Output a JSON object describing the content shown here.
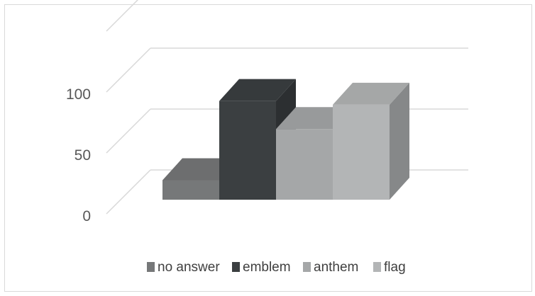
{
  "chart_data": {
    "type": "bar",
    "subtype": "3d-column",
    "categories": [
      "no answer",
      "emblem",
      "anthem",
      "flag"
    ],
    "values": [
      16,
      81,
      58,
      78
    ],
    "ylim": [
      0,
      150
    ],
    "yticks": [
      "0",
      "50",
      "100"
    ],
    "grid": true,
    "legend": {
      "placement": "bottom",
      "entries": [
        "no answer",
        "emblem",
        "anthem",
        "flag"
      ]
    },
    "colors": {
      "no answer": "#767879",
      "emblem": "#3b3f41",
      "anthem": "#a5a7a8",
      "flag": "#b3b5b6"
    }
  }
}
